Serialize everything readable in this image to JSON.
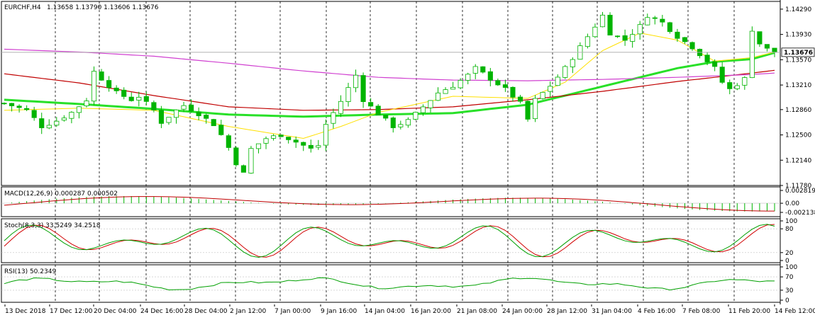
{
  "main": {
    "symbol_label": "EURCHF,H4",
    "ohlc_label": "1.13658 1.13790 1.13606 1.13676",
    "price_ticks": [
      "1.14290",
      "1.13930",
      "1.13570",
      "1.13210",
      "1.12860",
      "1.12500",
      "1.12140",
      "1.11780"
    ],
    "current_price": "1.13676"
  },
  "macd": {
    "label": "MACD(12,26,9) 0.000287 0.000502",
    "ticks": [
      "0.002819",
      "0.00",
      "-0.002138"
    ]
  },
  "stoch": {
    "label": "Stoch(8,3,3) 33.5249 34.2518",
    "ticks": [
      "100",
      "80",
      "20",
      "0"
    ]
  },
  "rsi": {
    "label": "RSI(13) 50.2349",
    "ticks": [
      "100",
      "70",
      "30",
      "0"
    ]
  },
  "x_axis": {
    "labels": [
      "13 Dec 2018",
      "17 Dec 12:00",
      "20 Dec 04:00",
      "24 Dec 16:00",
      "28 Dec 04:00",
      "2 Jan 12:00",
      "7 Jan 00:00",
      "9 Jan 16:00",
      "14 Jan 04:00",
      "16 Jan 20:00",
      "21 Jan 08:00",
      "24 Jan 00:00",
      "28 Jan 12:00",
      "31 Jan 04:00",
      "4 Feb 16:00",
      "7 Feb 08:00",
      "11 Feb 20:00",
      "14 Feb 12:00"
    ]
  },
  "colors": {
    "bull": "#00b400",
    "bear": "#00b400",
    "ema_green": "#28e028",
    "ma_yellow": "#ffe000",
    "ma_red": "#c00000",
    "ma_magenta": "#d040d0",
    "stoch_main": "#00a000",
    "stoch_signal": "#d00000",
    "rsi": "#00a000",
    "macd_hist": "#00b400",
    "macd_signal": "#c00000"
  },
  "chart_data": {
    "type": "candlestick",
    "symbol": "EURCHF",
    "timeframe": "H4",
    "ylim": [
      1.1178,
      1.144
    ],
    "last_close": 1.13676,
    "price_path": [
      [
        0,
        1.1295
      ],
      [
        3,
        1.1285
      ],
      [
        5,
        1.1262
      ],
      [
        7,
        1.127
      ],
      [
        9,
        1.1282
      ],
      [
        11,
        1.13
      ],
      [
        12,
        1.134
      ],
      [
        13,
        1.133
      ],
      [
        15,
        1.131
      ],
      [
        17,
        1.13
      ],
      [
        18,
        1.1305
      ],
      [
        20,
        1.1285
      ],
      [
        21,
        1.1268
      ],
      [
        23,
        1.1285
      ],
      [
        24,
        1.1292
      ],
      [
        26,
        1.128
      ],
      [
        28,
        1.1265
      ],
      [
        29,
        1.125
      ],
      [
        30,
        1.1232
      ],
      [
        31,
        1.121
      ],
      [
        32,
        1.1195
      ],
      [
        33,
        1.123
      ],
      [
        35,
        1.1245
      ],
      [
        37,
        1.125
      ],
      [
        39,
        1.124
      ],
      [
        41,
        1.123
      ],
      [
        42,
        1.1235
      ],
      [
        43,
        1.1265
      ],
      [
        45,
        1.1298
      ],
      [
        47,
        1.1335
      ],
      [
        48,
        1.13
      ],
      [
        50,
        1.128
      ],
      [
        52,
        1.1262
      ],
      [
        54,
        1.127
      ],
      [
        56,
        1.129
      ],
      [
        58,
        1.131
      ],
      [
        60,
        1.132
      ],
      [
        62,
        1.1335
      ],
      [
        63,
        1.1345
      ],
      [
        65,
        1.133
      ],
      [
        67,
        1.1315
      ],
      [
        69,
        1.1295
      ],
      [
        70,
        1.1272
      ],
      [
        71,
        1.13
      ],
      [
        73,
        1.132
      ],
      [
        75,
        1.1345
      ],
      [
        77,
        1.1375
      ],
      [
        79,
        1.1405
      ],
      [
        80,
        1.142
      ],
      [
        81,
        1.1395
      ],
      [
        83,
        1.1385
      ],
      [
        85,
        1.1405
      ],
      [
        86,
        1.142
      ],
      [
        88,
        1.141
      ],
      [
        89,
        1.14
      ],
      [
        90,
        1.139
      ],
      [
        92,
        1.1375
      ],
      [
        93,
        1.1365
      ],
      [
        95,
        1.1345
      ],
      [
        96,
        1.1325
      ],
      [
        97,
        1.1315
      ],
      [
        99,
        1.133
      ],
      [
        100,
        1.14
      ],
      [
        101,
        1.138
      ],
      [
        102,
        1.1372
      ],
      [
        103,
        1.1368
      ]
    ],
    "indicators": [
      {
        "name": "EMA",
        "color": "#28e028",
        "path": [
          [
            0,
            1.13
          ],
          [
            10,
            1.1294
          ],
          [
            20,
            1.1287
          ],
          [
            30,
            1.1279
          ],
          [
            40,
            1.1276
          ],
          [
            50,
            1.1279
          ],
          [
            60,
            1.1281
          ],
          [
            70,
            1.1293
          ],
          [
            80,
            1.1319
          ],
          [
            90,
            1.1345
          ],
          [
            95,
            1.1354
          ],
          [
            100,
            1.1358
          ],
          [
            103,
            1.1367
          ]
        ]
      },
      {
        "name": "MA",
        "color": "#c00000",
        "path": [
          [
            0,
            1.1337
          ],
          [
            10,
            1.1324
          ],
          [
            20,
            1.1306
          ],
          [
            30,
            1.129
          ],
          [
            40,
            1.1285
          ],
          [
            50,
            1.1286
          ],
          [
            60,
            1.129
          ],
          [
            70,
            1.13
          ],
          [
            80,
            1.1312
          ],
          [
            90,
            1.1326
          ],
          [
            100,
            1.1338
          ],
          [
            103,
            1.1342
          ]
        ]
      },
      {
        "name": "MA",
        "color": "#d040d0",
        "path": [
          [
            0,
            1.1372
          ],
          [
            10,
            1.1368
          ],
          [
            20,
            1.1362
          ],
          [
            30,
            1.1352
          ],
          [
            40,
            1.1341
          ],
          [
            50,
            1.1332
          ],
          [
            60,
            1.1328
          ],
          [
            70,
            1.1327
          ],
          [
            80,
            1.1329
          ],
          [
            90,
            1.1332
          ],
          [
            100,
            1.1336
          ],
          [
            103,
            1.1338
          ]
        ]
      },
      {
        "name": "MA",
        "color": "#ffe000",
        "path": [
          [
            0,
            1.1285
          ],
          [
            10,
            1.1288
          ],
          [
            20,
            1.1285
          ],
          [
            30,
            1.1262
          ],
          [
            40,
            1.1245
          ],
          [
            45,
            1.1262
          ],
          [
            50,
            1.1282
          ],
          [
            60,
            1.1305
          ],
          [
            70,
            1.1302
          ],
          [
            75,
            1.1325
          ],
          [
            80,
            1.137
          ],
          [
            85,
            1.1395
          ],
          [
            90,
            1.1385
          ],
          [
            95,
            1.1355
          ],
          [
            100,
            1.136
          ],
          [
            103,
            1.1368
          ]
        ]
      }
    ],
    "macd": {
      "params": "12,26,9",
      "value": 0.000287,
      "signal": 0.000502,
      "ylim": [
        -0.002138,
        0.002819
      ]
    },
    "stochastic": {
      "params": "8,3,3",
      "main": 33.5249,
      "signal": 34.2518,
      "levels": [
        20,
        80
      ],
      "ylim": [
        0,
        100
      ]
    },
    "rsi": {
      "params": "13",
      "value": 50.2349,
      "levels": [
        30,
        70
      ],
      "ylim": [
        0,
        100
      ]
    },
    "x_labels": [
      "13 Dec 2018",
      "17 Dec 12:00",
      "20 Dec 04:00",
      "24 Dec 16:00",
      "28 Dec 04:00",
      "2 Jan 12:00",
      "7 Jan 00:00",
      "9 Jan 16:00",
      "14 Jan 04:00",
      "16 Jan 20:00",
      "21 Jan 08:00",
      "24 Jan 00:00",
      "28 Jan 12:00",
      "31 Jan 04:00",
      "4 Feb 16:00",
      "7 Feb 08:00",
      "11 Feb 20:00",
      "14 Feb 12:00"
    ]
  }
}
